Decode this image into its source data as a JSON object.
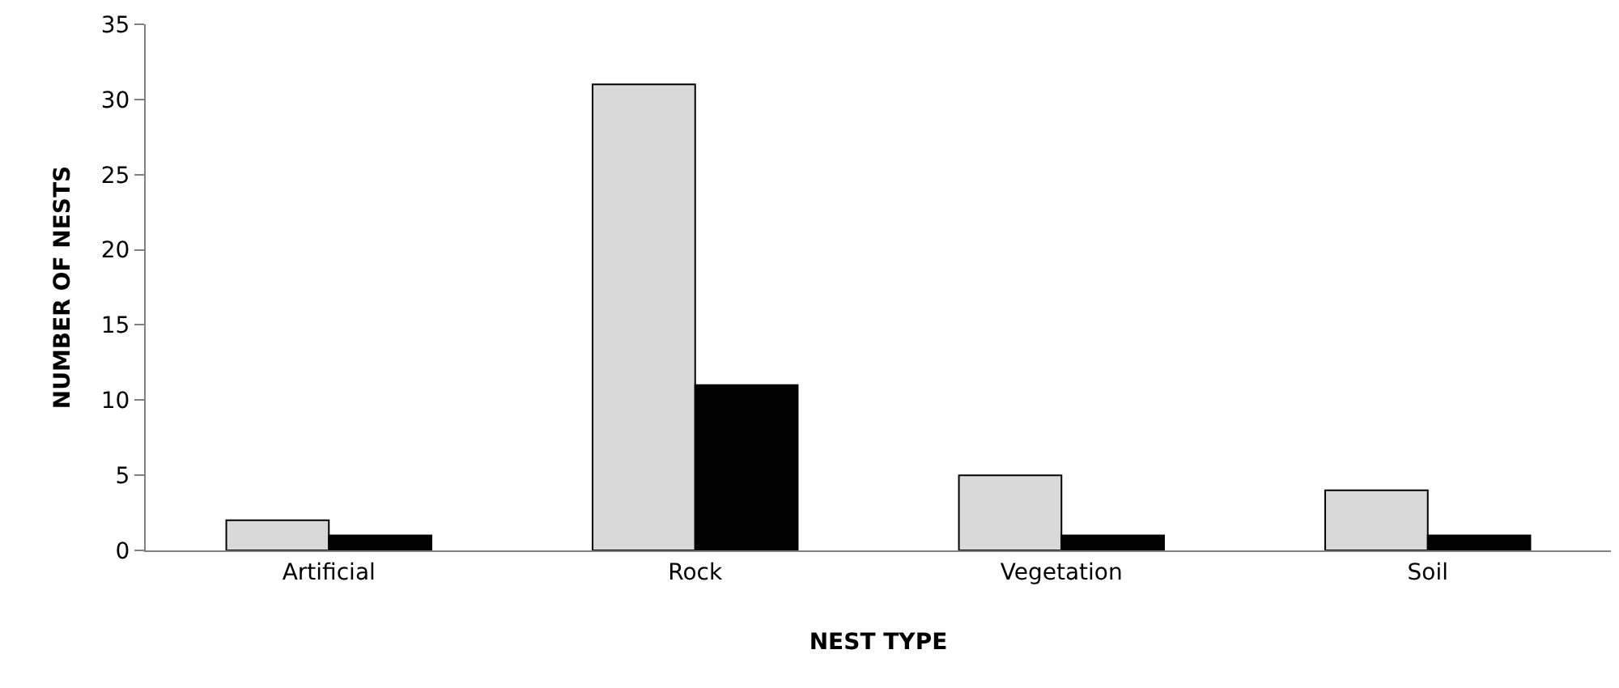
{
  "chart_data": {
    "type": "bar",
    "xlabel": "NEST TYPE",
    "ylabel": "NUMBER OF NESTS",
    "categories": [
      "Artificial",
      "Rock",
      "Vegetation",
      "Soil"
    ],
    "series": [
      {
        "color": "#d9d9d9",
        "values": [
          2,
          31,
          5,
          4
        ]
      },
      {
        "color": "#000000",
        "values": [
          1,
          11,
          1,
          1
        ]
      }
    ],
    "ylim": [
      0,
      35
    ],
    "yticks": [
      0,
      5,
      10,
      15,
      20,
      25,
      30,
      35
    ]
  }
}
